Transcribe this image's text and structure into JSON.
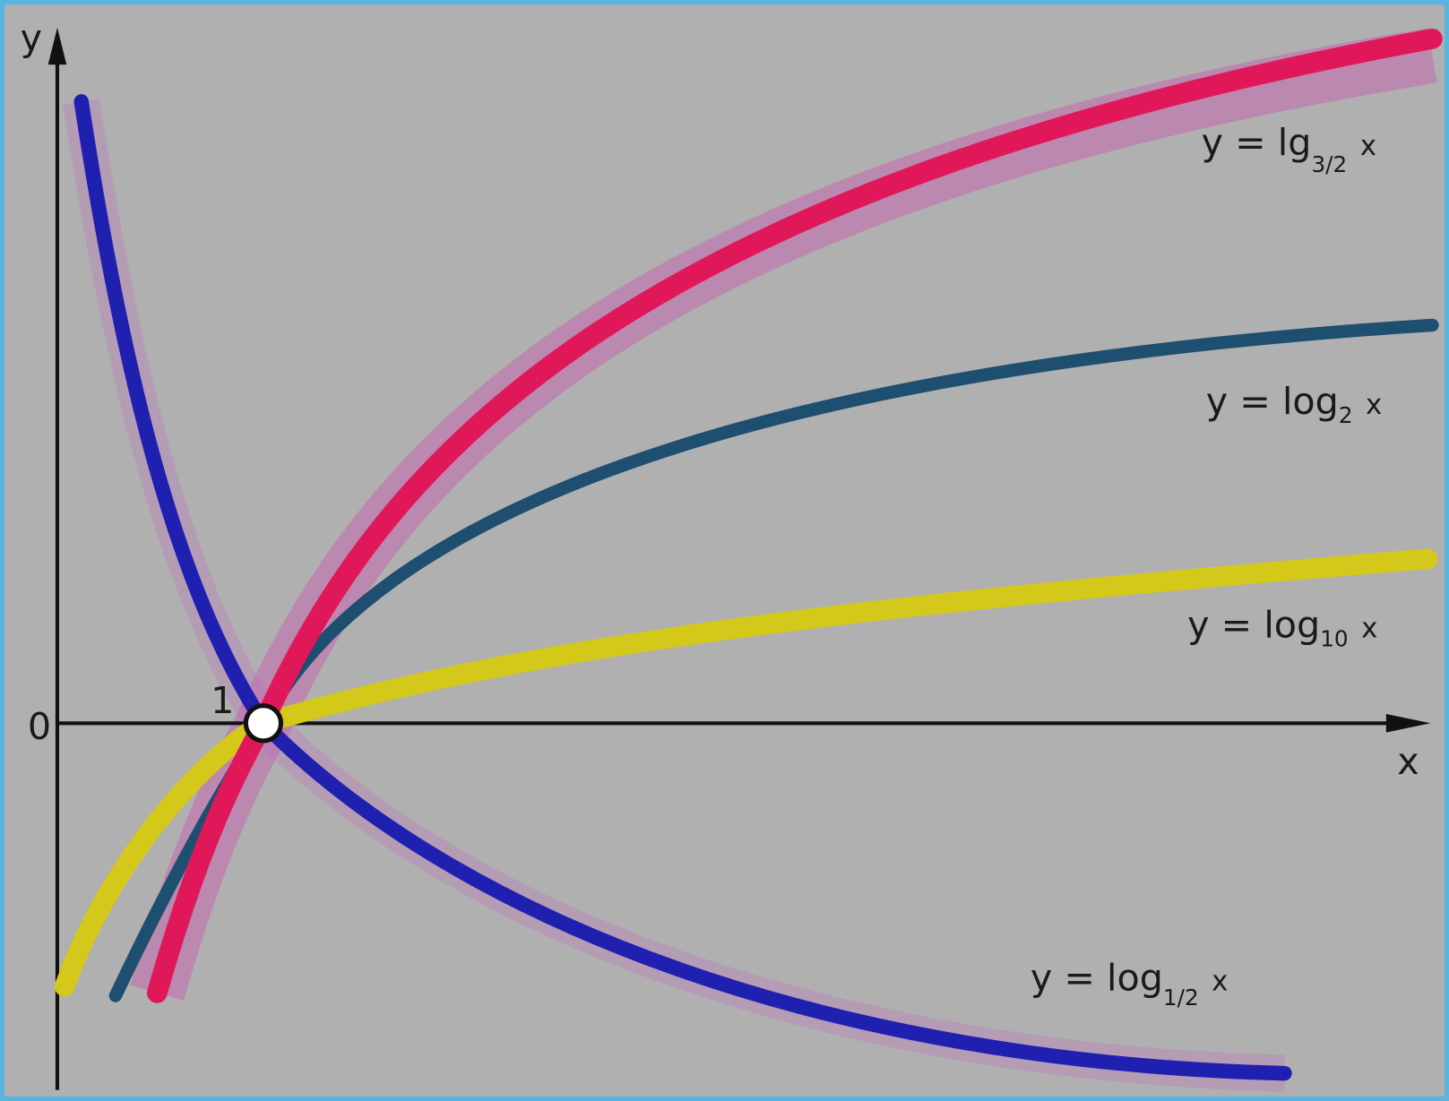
{
  "axes": {
    "y_label": "y",
    "x_label": "x",
    "origin_label": "0",
    "unit_label": "1"
  },
  "curves": [
    {
      "prefix": "y = lg",
      "base": "3/2",
      "suffix": "x"
    },
    {
      "prefix": "y = log",
      "base": "2",
      "suffix": "x"
    },
    {
      "prefix": "y = log",
      "base": "10",
      "suffix": "x"
    },
    {
      "prefix": "y = log",
      "base": "1/2",
      "suffix": "x"
    }
  ]
}
